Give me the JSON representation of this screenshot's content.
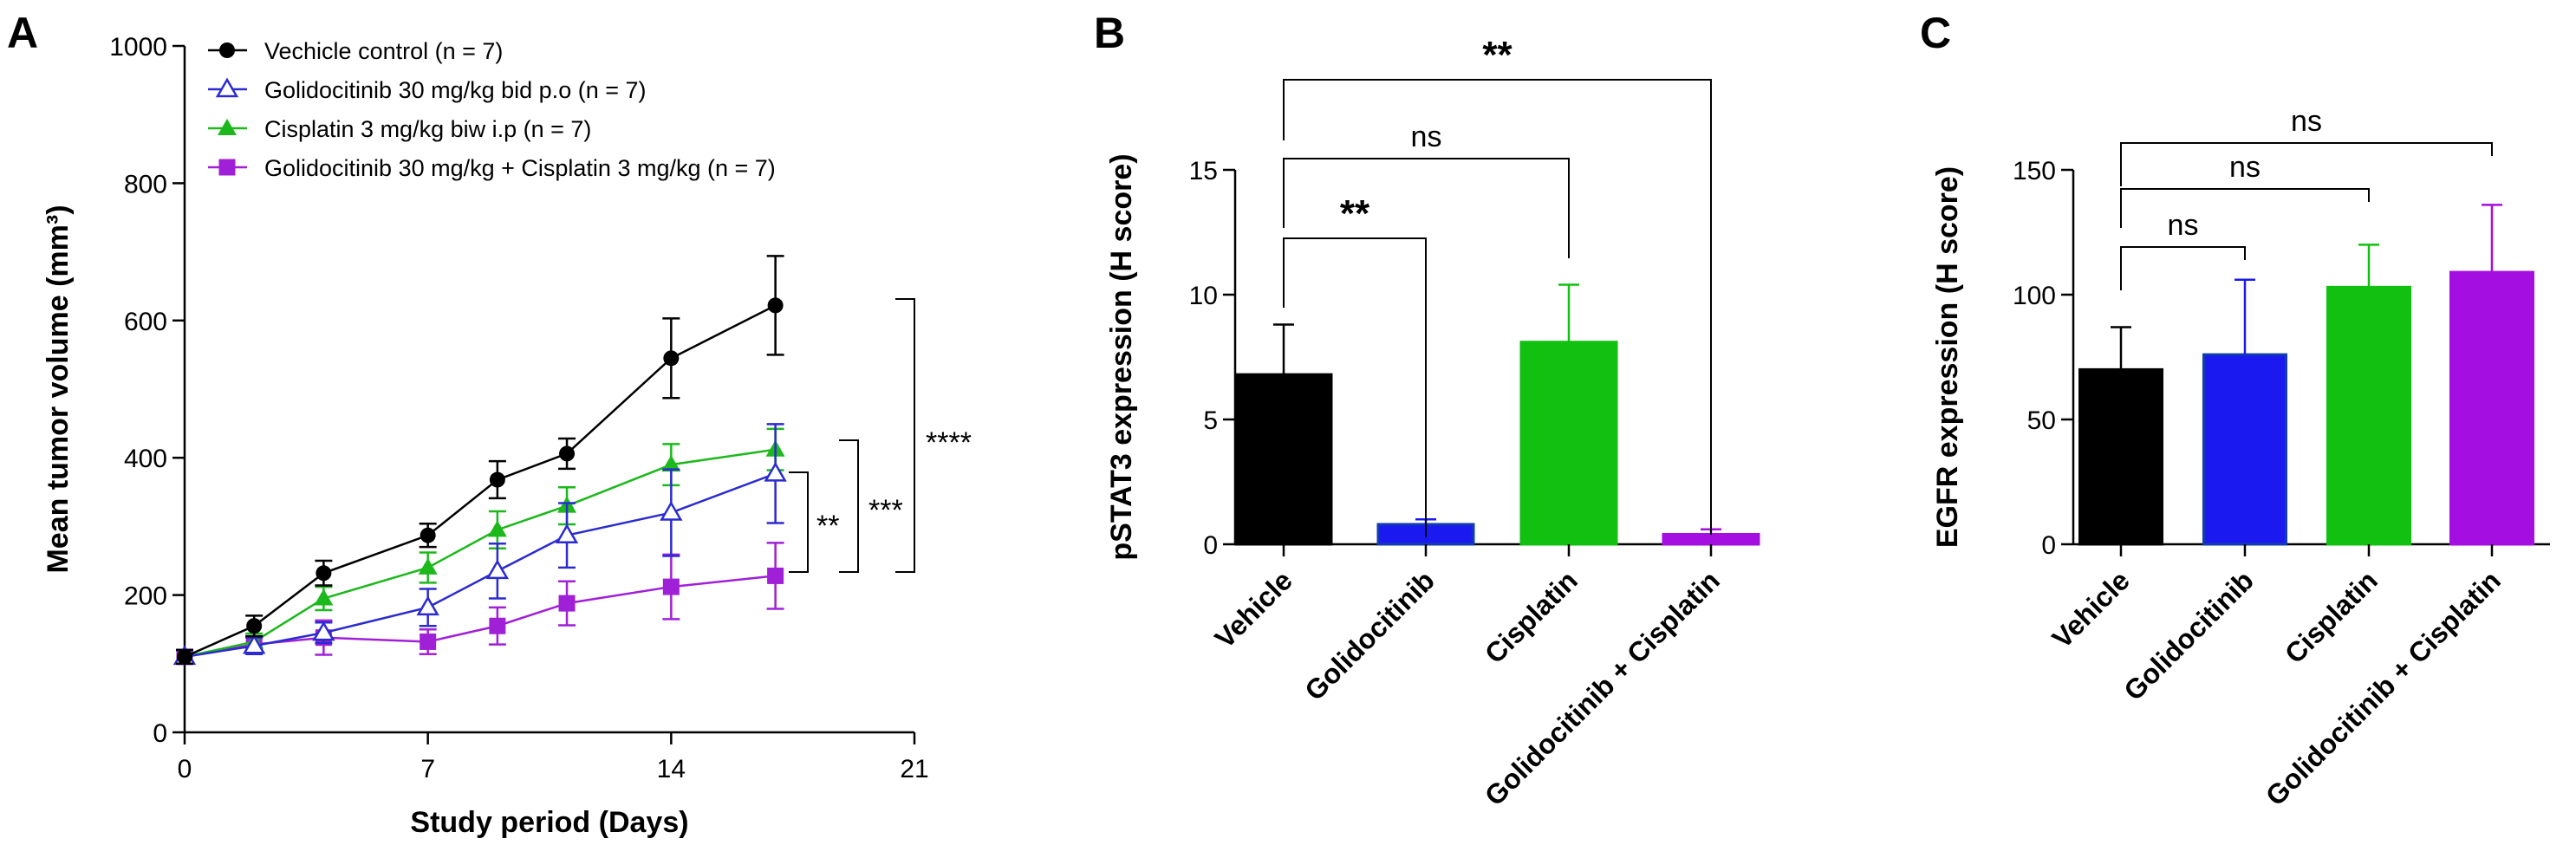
{
  "chart_data": [
    {
      "panel": "A",
      "type": "line",
      "xlabel": "Study period (Days)",
      "ylabel": "Mean tumor volume (mm³)",
      "xlim": [
        0,
        21
      ],
      "ylim": [
        0,
        1000
      ],
      "xticks": [
        0,
        7,
        14,
        21
      ],
      "yticks": [
        0,
        200,
        400,
        600,
        800,
        1000
      ],
      "legend_position": "top-left",
      "series": [
        {
          "name": "Vechicle control (n = 7)",
          "color": "#000000",
          "marker": "filled-circle",
          "x": [
            0,
            2,
            4,
            7,
            9,
            11,
            14,
            17
          ],
          "y": [
            110,
            155,
            232,
            287,
            368,
            406,
            545,
            622
          ],
          "err": [
            10,
            15,
            18,
            17,
            27,
            22,
            58,
            72
          ]
        },
        {
          "name": "Golidocitinib 30 mg/kg bid p.o (n = 7)",
          "color": "#2b2bd0",
          "marker": "open-triangle",
          "x": [
            0,
            2,
            4,
            7,
            9,
            11,
            14,
            17
          ],
          "y": [
            110,
            126,
            145,
            182,
            235,
            287,
            320,
            377
          ],
          "err": [
            10,
            12,
            15,
            27,
            40,
            47,
            63,
            72
          ]
        },
        {
          "name": "Cisplatin 3 mg/kg biw i.p (n = 7)",
          "color": "#1cb81c",
          "marker": "filled-triangle",
          "x": [
            0,
            2,
            4,
            7,
            9,
            11,
            14,
            17
          ],
          "y": [
            110,
            132,
            195,
            240,
            295,
            330,
            390,
            412
          ],
          "err": [
            10,
            12,
            17,
            22,
            27,
            27,
            30,
            30
          ]
        },
        {
          "name": "Golidocitinib 30 mg/kg + Cisplatin 3 mg/kg (n = 7)",
          "color": "#a020d8",
          "marker": "filled-square",
          "x": [
            0,
            2,
            4,
            7,
            9,
            11,
            14,
            17
          ],
          "y": [
            110,
            128,
            138,
            132,
            155,
            188,
            212,
            228
          ],
          "err": [
            10,
            12,
            25,
            18,
            27,
            32,
            47,
            48
          ]
        }
      ],
      "significance": [
        "**",
        "***",
        "****"
      ]
    },
    {
      "panel": "B",
      "type": "bar",
      "ylabel": "pSTAT3 expression (H score)",
      "ylim": [
        0,
        15
      ],
      "yticks": [
        0,
        5,
        10,
        15
      ],
      "categories": [
        "Vehicle",
        "Golidocitinib",
        "Cisplatin",
        "Golidocitinib + Cisplatin"
      ],
      "values": [
        6.8,
        0.8,
        8.1,
        0.4
      ],
      "err": [
        2.0,
        0.2,
        2.3,
        0.2
      ],
      "colors": [
        "#000000",
        "#1a1af0",
        "#11c011",
        "#a40ee0"
      ],
      "comparisons": [
        {
          "from": "Vehicle",
          "to": "Golidocitinib",
          "label": "**"
        },
        {
          "from": "Vehicle",
          "to": "Cisplatin",
          "label": "ns"
        },
        {
          "from": "Vehicle",
          "to": "Golidocitinib + Cisplatin",
          "label": "**"
        }
      ]
    },
    {
      "panel": "C",
      "type": "bar",
      "ylabel": "EGFR expression (H score)",
      "ylim": [
        0,
        150
      ],
      "yticks": [
        0,
        50,
        100,
        150
      ],
      "categories": [
        "Vehicle",
        "Golidocitinib",
        "Cisplatin",
        "Golidocitinib + Cisplatin"
      ],
      "values": [
        70,
        76,
        103,
        109
      ],
      "err": [
        17,
        30,
        17,
        27
      ],
      "colors": [
        "#000000",
        "#1a1af0",
        "#11c011",
        "#a40ee0"
      ],
      "comparisons": [
        {
          "from": "Vehicle",
          "to": "Golidocitinib",
          "label": "ns"
        },
        {
          "from": "Vehicle",
          "to": "Cisplatin",
          "label": "ns"
        },
        {
          "from": "Vehicle",
          "to": "Golidocitinib + Cisplatin",
          "label": "ns"
        }
      ]
    }
  ]
}
